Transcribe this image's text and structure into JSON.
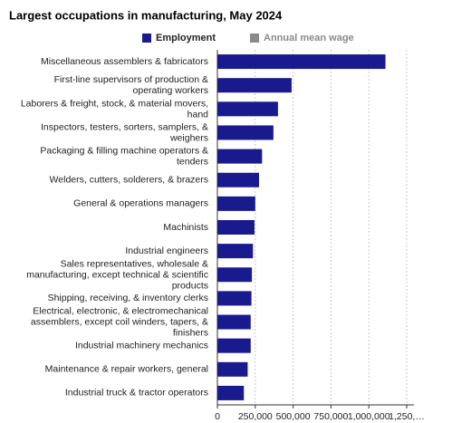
{
  "chart_data": {
    "type": "hbar",
    "title": "Largest occupations in manufacturing, May 2024",
    "legend": [
      {
        "name": "Employment",
        "color": "#1a1a8f",
        "active": true
      },
      {
        "name": "Annual mean wage",
        "color": "#8a8a8a",
        "active": false
      }
    ],
    "categories": [
      "Miscellaneous assemblers & fabricators",
      "First-line supervisors of production & operating workers",
      "Laborers & freight, stock, & material movers, hand",
      "Inspectors, testers, sorters, samplers, & weighers",
      "Packaging & filling machine operators & tenders",
      "Welders, cutters, solderers, & brazers",
      "General & operations managers",
      "Machinists",
      "Industrial engineers",
      "Sales representatives, wholesale & manufacturing, except technical & scientific products",
      "Shipping, receiving, & inventory clerks",
      "Electrical, electronic, & electromechanical assemblers, except coil winders, tapers, & finishers",
      "Industrial machinery mechanics",
      "Maintenance & repair workers, general",
      "Industrial truck & tractor operators"
    ],
    "values": [
      1110000,
      490000,
      400000,
      370000,
      295000,
      275000,
      250000,
      245000,
      235000,
      228000,
      225000,
      220000,
      220000,
      200000,
      175000
    ],
    "color": "#1a1a8f",
    "xlim": [
      0,
      1250000
    ],
    "xticks": [
      0,
      {
        "value": 250000,
        "label": "250,000"
      },
      {
        "value": 500000,
        "label": "500,000"
      },
      {
        "value": 750000,
        "label": "750,000"
      },
      {
        "value": 1000000,
        "label": "1,000,000"
      },
      {
        "value": 1250000,
        "label": "1,250,…"
      }
    ],
    "grid": true
  }
}
